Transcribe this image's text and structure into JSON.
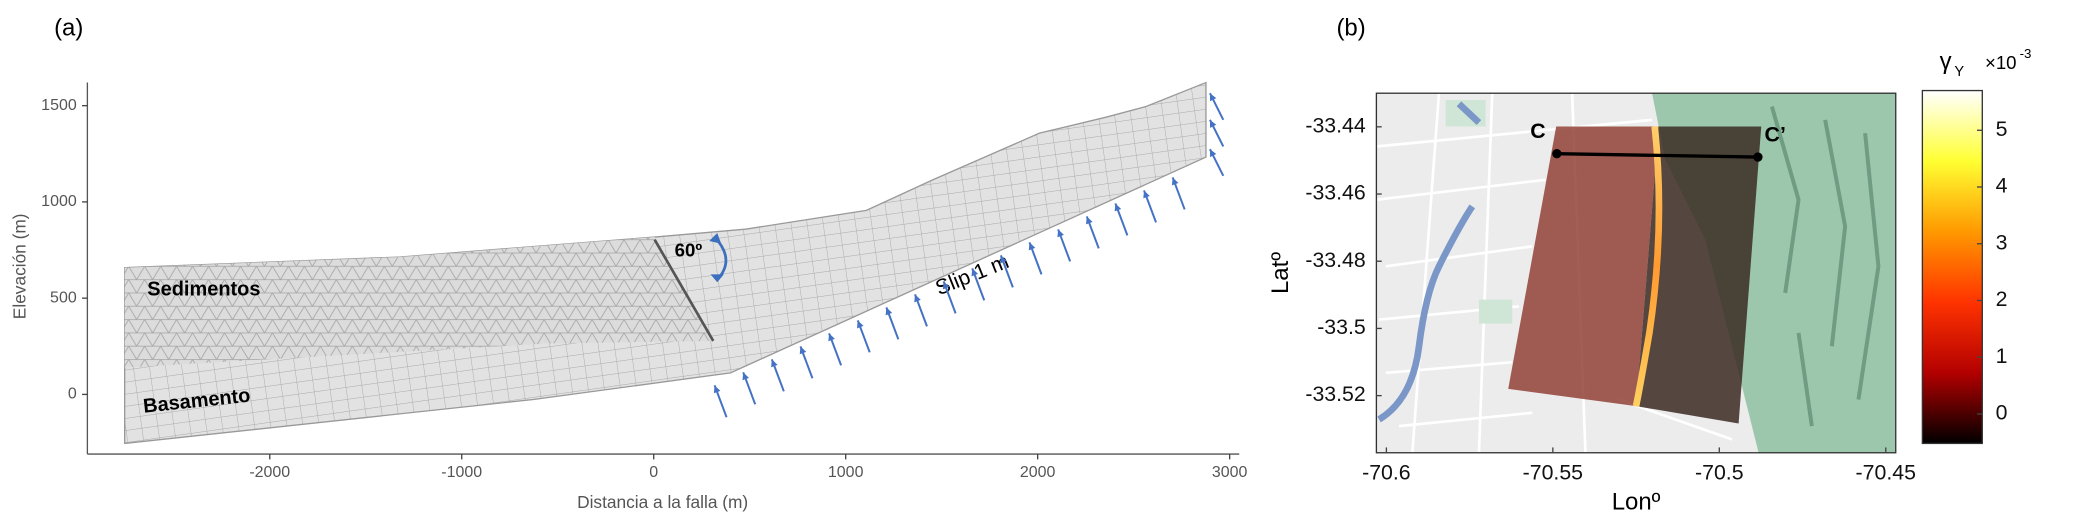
{
  "chart_data": [
    {
      "type": "diagram",
      "panel_label": "(a)",
      "xlabel": "Distancia a la falla (m)",
      "ylabel": "Elevación (m)",
      "xlim": [
        -2950,
        3050
      ],
      "ylim": [
        -310,
        1620
      ],
      "xticks": [
        -2000,
        -1000,
        0,
        1000,
        2000,
        3000
      ],
      "yticks": [
        0,
        500,
        1000,
        1500
      ],
      "annotations": [
        "Sedimentos",
        "Basamento",
        "60º",
        "Slip 1 m"
      ]
    },
    {
      "type": "map",
      "panel_label": "(b)",
      "xlabel": "Lonº",
      "ylabel": "Latº",
      "xlim": [
        -70.603,
        -70.447
      ],
      "ylim": [
        -33.537,
        -33.43
      ],
      "xticks": [
        -70.6,
        -70.55,
        -70.5,
        -70.45
      ],
      "yticks": [
        -33.44,
        -33.46,
        -33.48,
        -33.5,
        -33.52
      ],
      "profile": {
        "labels": [
          "C",
          "C’"
        ],
        "x": [
          -70.5488,
          -70.4884
        ],
        "y": [
          -33.448,
          -33.449
        ],
        "color": "#000000"
      },
      "colorbar": {
        "label": "γ",
        "label_subscript": "Y",
        "multiplier": "×10",
        "multiplier_exponent": "-3",
        "lim": [
          -0.52,
          5.7
        ],
        "ticks": [
          0,
          1,
          2,
          3,
          4,
          5
        ],
        "colormap": "hot"
      }
    }
  ]
}
